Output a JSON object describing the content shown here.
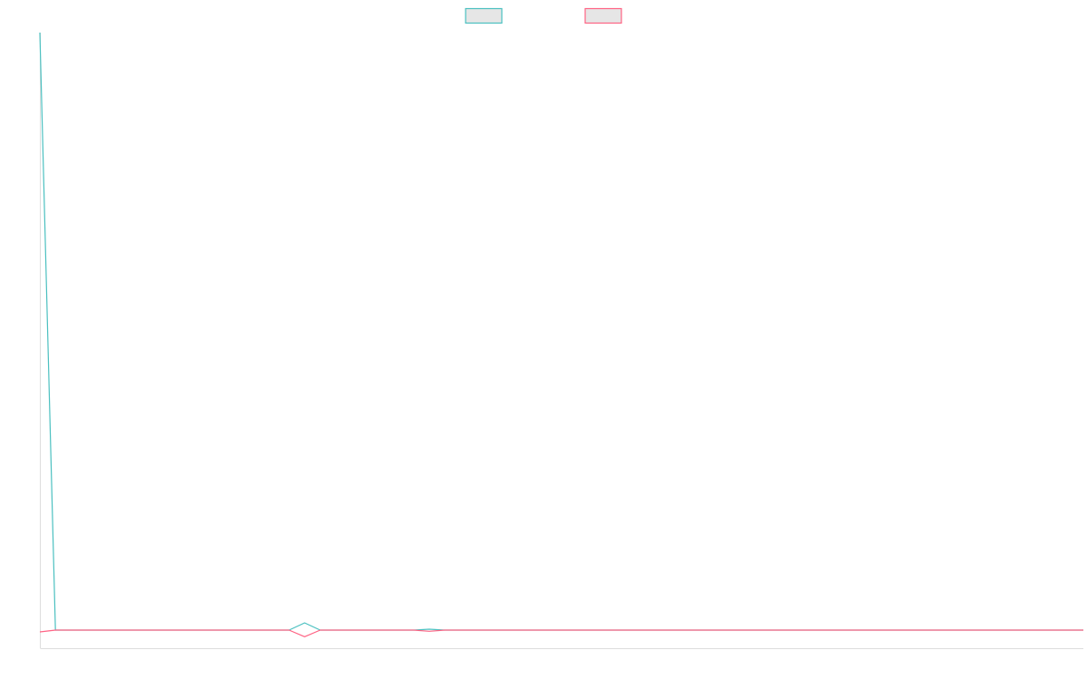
{
  "chart_data": {
    "type": "line",
    "title": "",
    "xlabel": "",
    "ylabel": "",
    "grid": false,
    "legend": "top-center",
    "x": [
      0,
      1,
      2,
      3,
      4,
      5,
      6,
      7,
      8,
      9,
      10,
      11,
      12,
      13,
      14,
      15,
      16,
      17,
      18,
      19,
      20,
      21,
      22,
      23,
      24,
      25,
      26,
      27,
      28,
      29,
      30,
      31,
      32,
      33,
      34,
      35,
      36,
      37,
      38,
      39,
      40,
      41,
      42,
      43,
      44,
      45,
      46,
      47,
      48,
      49,
      50,
      51,
      52,
      53,
      54,
      55,
      56,
      57,
      58,
      59,
      60,
      61,
      62,
      63,
      64,
      65,
      66,
      67
    ],
    "xlim": [
      0,
      67
    ],
    "ylim": [
      -2,
      100
    ],
    "series": [
      {
        "name": "",
        "color": "#4bc0c0",
        "values": [
          100,
          1,
          1,
          1,
          1,
          1,
          1,
          1,
          1,
          1,
          1,
          1,
          1,
          1,
          1,
          1,
          1,
          2.2,
          1,
          1,
          1,
          1,
          1,
          1,
          1,
          1.15,
          1,
          1,
          1,
          1,
          1,
          1,
          1,
          1,
          1,
          1,
          1,
          1,
          1,
          1,
          1,
          1,
          1,
          1,
          1,
          1,
          1,
          1,
          1,
          1,
          1,
          1,
          1,
          1,
          1,
          1,
          1,
          1,
          1,
          1,
          1,
          1,
          1,
          1,
          1,
          1,
          1,
          1
        ]
      },
      {
        "name": "",
        "color": "#ff6384",
        "values": [
          0.7,
          1,
          1,
          1,
          1,
          1,
          1,
          1,
          1,
          1,
          1,
          1,
          1,
          1,
          1,
          1,
          1,
          -0.1,
          1,
          1,
          1,
          1,
          1,
          1,
          1,
          0.8,
          1,
          1,
          1,
          1,
          1,
          1,
          1,
          1,
          1,
          1,
          1,
          1,
          1,
          1,
          1,
          1,
          1,
          1,
          1,
          1,
          1,
          1,
          1,
          1,
          1,
          1,
          1,
          1,
          1,
          1,
          1,
          1,
          1,
          1,
          1,
          1,
          1,
          1,
          1,
          1,
          1,
          1
        ]
      }
    ]
  }
}
